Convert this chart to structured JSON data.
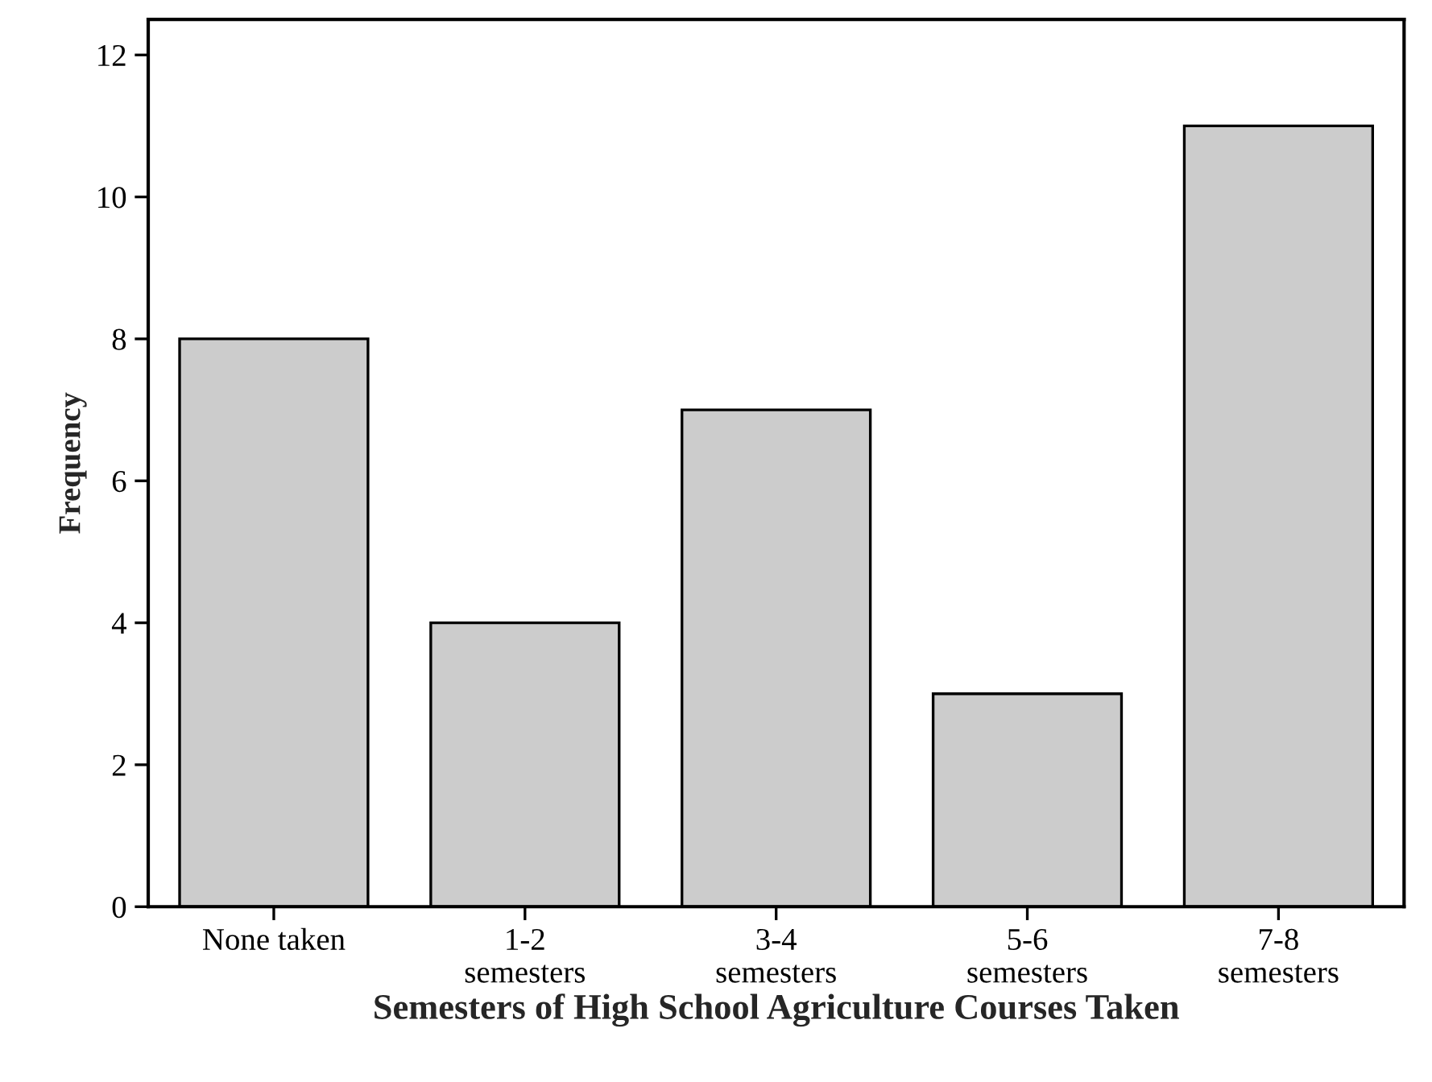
{
  "chart_data": {
    "type": "bar",
    "xlabel": "Semesters of High School Agriculture Courses Taken",
    "ylabel": "Frequency",
    "categories": [
      "None taken",
      "1-2\nsemesters",
      "3-4\nsemesters",
      "5-6\nsemesters",
      "7-8\nsemesters"
    ],
    "values": [
      8,
      4,
      7,
      3,
      11
    ],
    "color": "#cccccc",
    "ylim": [
      0,
      12.5
    ],
    "yticks": [
      0,
      2,
      4,
      6,
      8,
      10,
      12
    ],
    "grid": false
  }
}
